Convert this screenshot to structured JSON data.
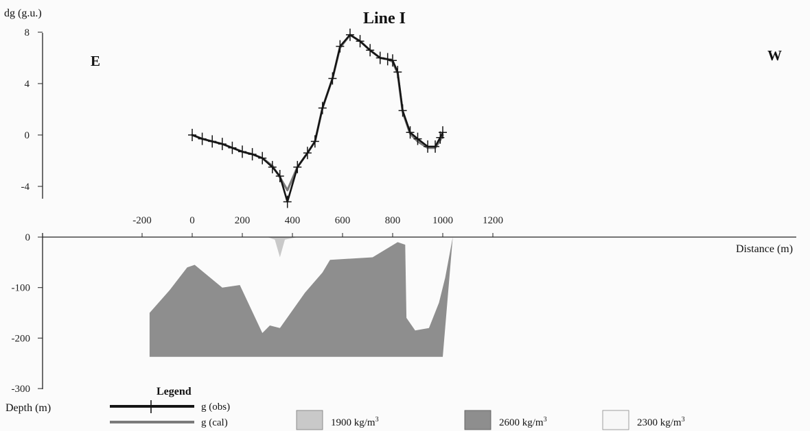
{
  "chart_data": [
    {
      "type": "line",
      "title": "Line I",
      "ylabel": "dg (g.u.)",
      "xlabel": "Distance (m)",
      "direction_left": "E",
      "direction_right": "W",
      "xlim": [
        -300,
        1200
      ],
      "ylim": [
        -6,
        8
      ],
      "x_ticks": [
        -200,
        0,
        200,
        400,
        600,
        800,
        1000,
        1200
      ],
      "y_ticks": [
        8,
        4,
        0,
        -4
      ],
      "series": [
        {
          "name": "g (obs)",
          "color": "#151515",
          "markers": "plus",
          "x": [
            0,
            40,
            80,
            120,
            160,
            200,
            240,
            280,
            320,
            350,
            380,
            420,
            460,
            490,
            520,
            560,
            590,
            630,
            670,
            710,
            750,
            780,
            800,
            820,
            840,
            870,
            900,
            940,
            970,
            990,
            1000
          ],
          "y": [
            0,
            -0.3,
            -0.5,
            -0.7,
            -1.0,
            -1.3,
            -1.5,
            -1.8,
            -2.5,
            -3.2,
            -5.2,
            -2.5,
            -1.4,
            -0.5,
            2.1,
            4.4,
            6.9,
            7.8,
            7.3,
            6.6,
            6.0,
            5.9,
            5.8,
            4.9,
            1.9,
            0.2,
            -0.3,
            -0.9,
            -0.9,
            -0.2,
            0.2
          ]
        },
        {
          "name": "g (cal)",
          "color": "#7a7a7a",
          "markers": "none",
          "x": [
            0,
            40,
            80,
            120,
            160,
            200,
            240,
            280,
            320,
            350,
            380,
            420,
            460,
            490,
            520,
            560,
            590,
            630,
            670,
            710,
            750,
            780,
            800,
            820,
            840,
            870,
            900,
            940,
            970,
            990,
            1000
          ],
          "y": [
            0,
            -0.3,
            -0.5,
            -0.7,
            -1.0,
            -1.3,
            -1.5,
            -1.8,
            -2.4,
            -3.3,
            -4.3,
            -2.5,
            -1.4,
            -0.5,
            2.1,
            4.4,
            6.8,
            7.8,
            7.3,
            6.6,
            6.0,
            5.9,
            5.7,
            4.8,
            1.8,
            0.1,
            -0.5,
            -1.0,
            -1.0,
            -0.4,
            0.0
          ]
        }
      ]
    },
    {
      "type": "area",
      "xlabel": "Distance (m)",
      "ylabel": "Depth (m)",
      "xlim": [
        -300,
        1200
      ],
      "ylim": [
        -300,
        0
      ],
      "y_ticks": [
        0,
        -100,
        -200,
        -300
      ],
      "legend_title": "Legend",
      "bodies": [
        {
          "name": "1900 kg/m³",
          "label_main": "1900 kg/m",
          "label_sup": "3",
          "color": "#c9c9c9",
          "x": [
            -10,
            60,
            160,
            300,
            330,
            350,
            370,
            420,
            500,
            600,
            700,
            800,
            820,
            840,
            960,
            1010,
            -10
          ],
          "y": [
            0,
            0,
            0,
            0,
            -5,
            -40,
            -5,
            0,
            0,
            0,
            0,
            0,
            0,
            0,
            0,
            0,
            0
          ]
        },
        {
          "name": "2600 kg/m³",
          "label_main": "2600 kg/m",
          "label_sup": "3",
          "color": "#8e8e8e",
          "x": [
            -170,
            -90,
            -20,
            10,
            120,
            190,
            280,
            310,
            350,
            450,
            520,
            550,
            720,
            820,
            850,
            855,
            890,
            945,
            985,
            1010,
            1040,
            1040,
            1000,
            -170
          ],
          "y": [
            -150,
            -105,
            -60,
            -55,
            -100,
            -95,
            -190,
            -175,
            -180,
            -110,
            -70,
            -45,
            -40,
            -10,
            -15,
            -160,
            -185,
            -180,
            -130,
            -80,
            0,
            0,
            -237,
            -237
          ]
        },
        {
          "name": "2300 kg/m³",
          "label_main": "2300 kg/m",
          "label_sup": "3",
          "color": "#f7f7f7"
        }
      ]
    }
  ]
}
